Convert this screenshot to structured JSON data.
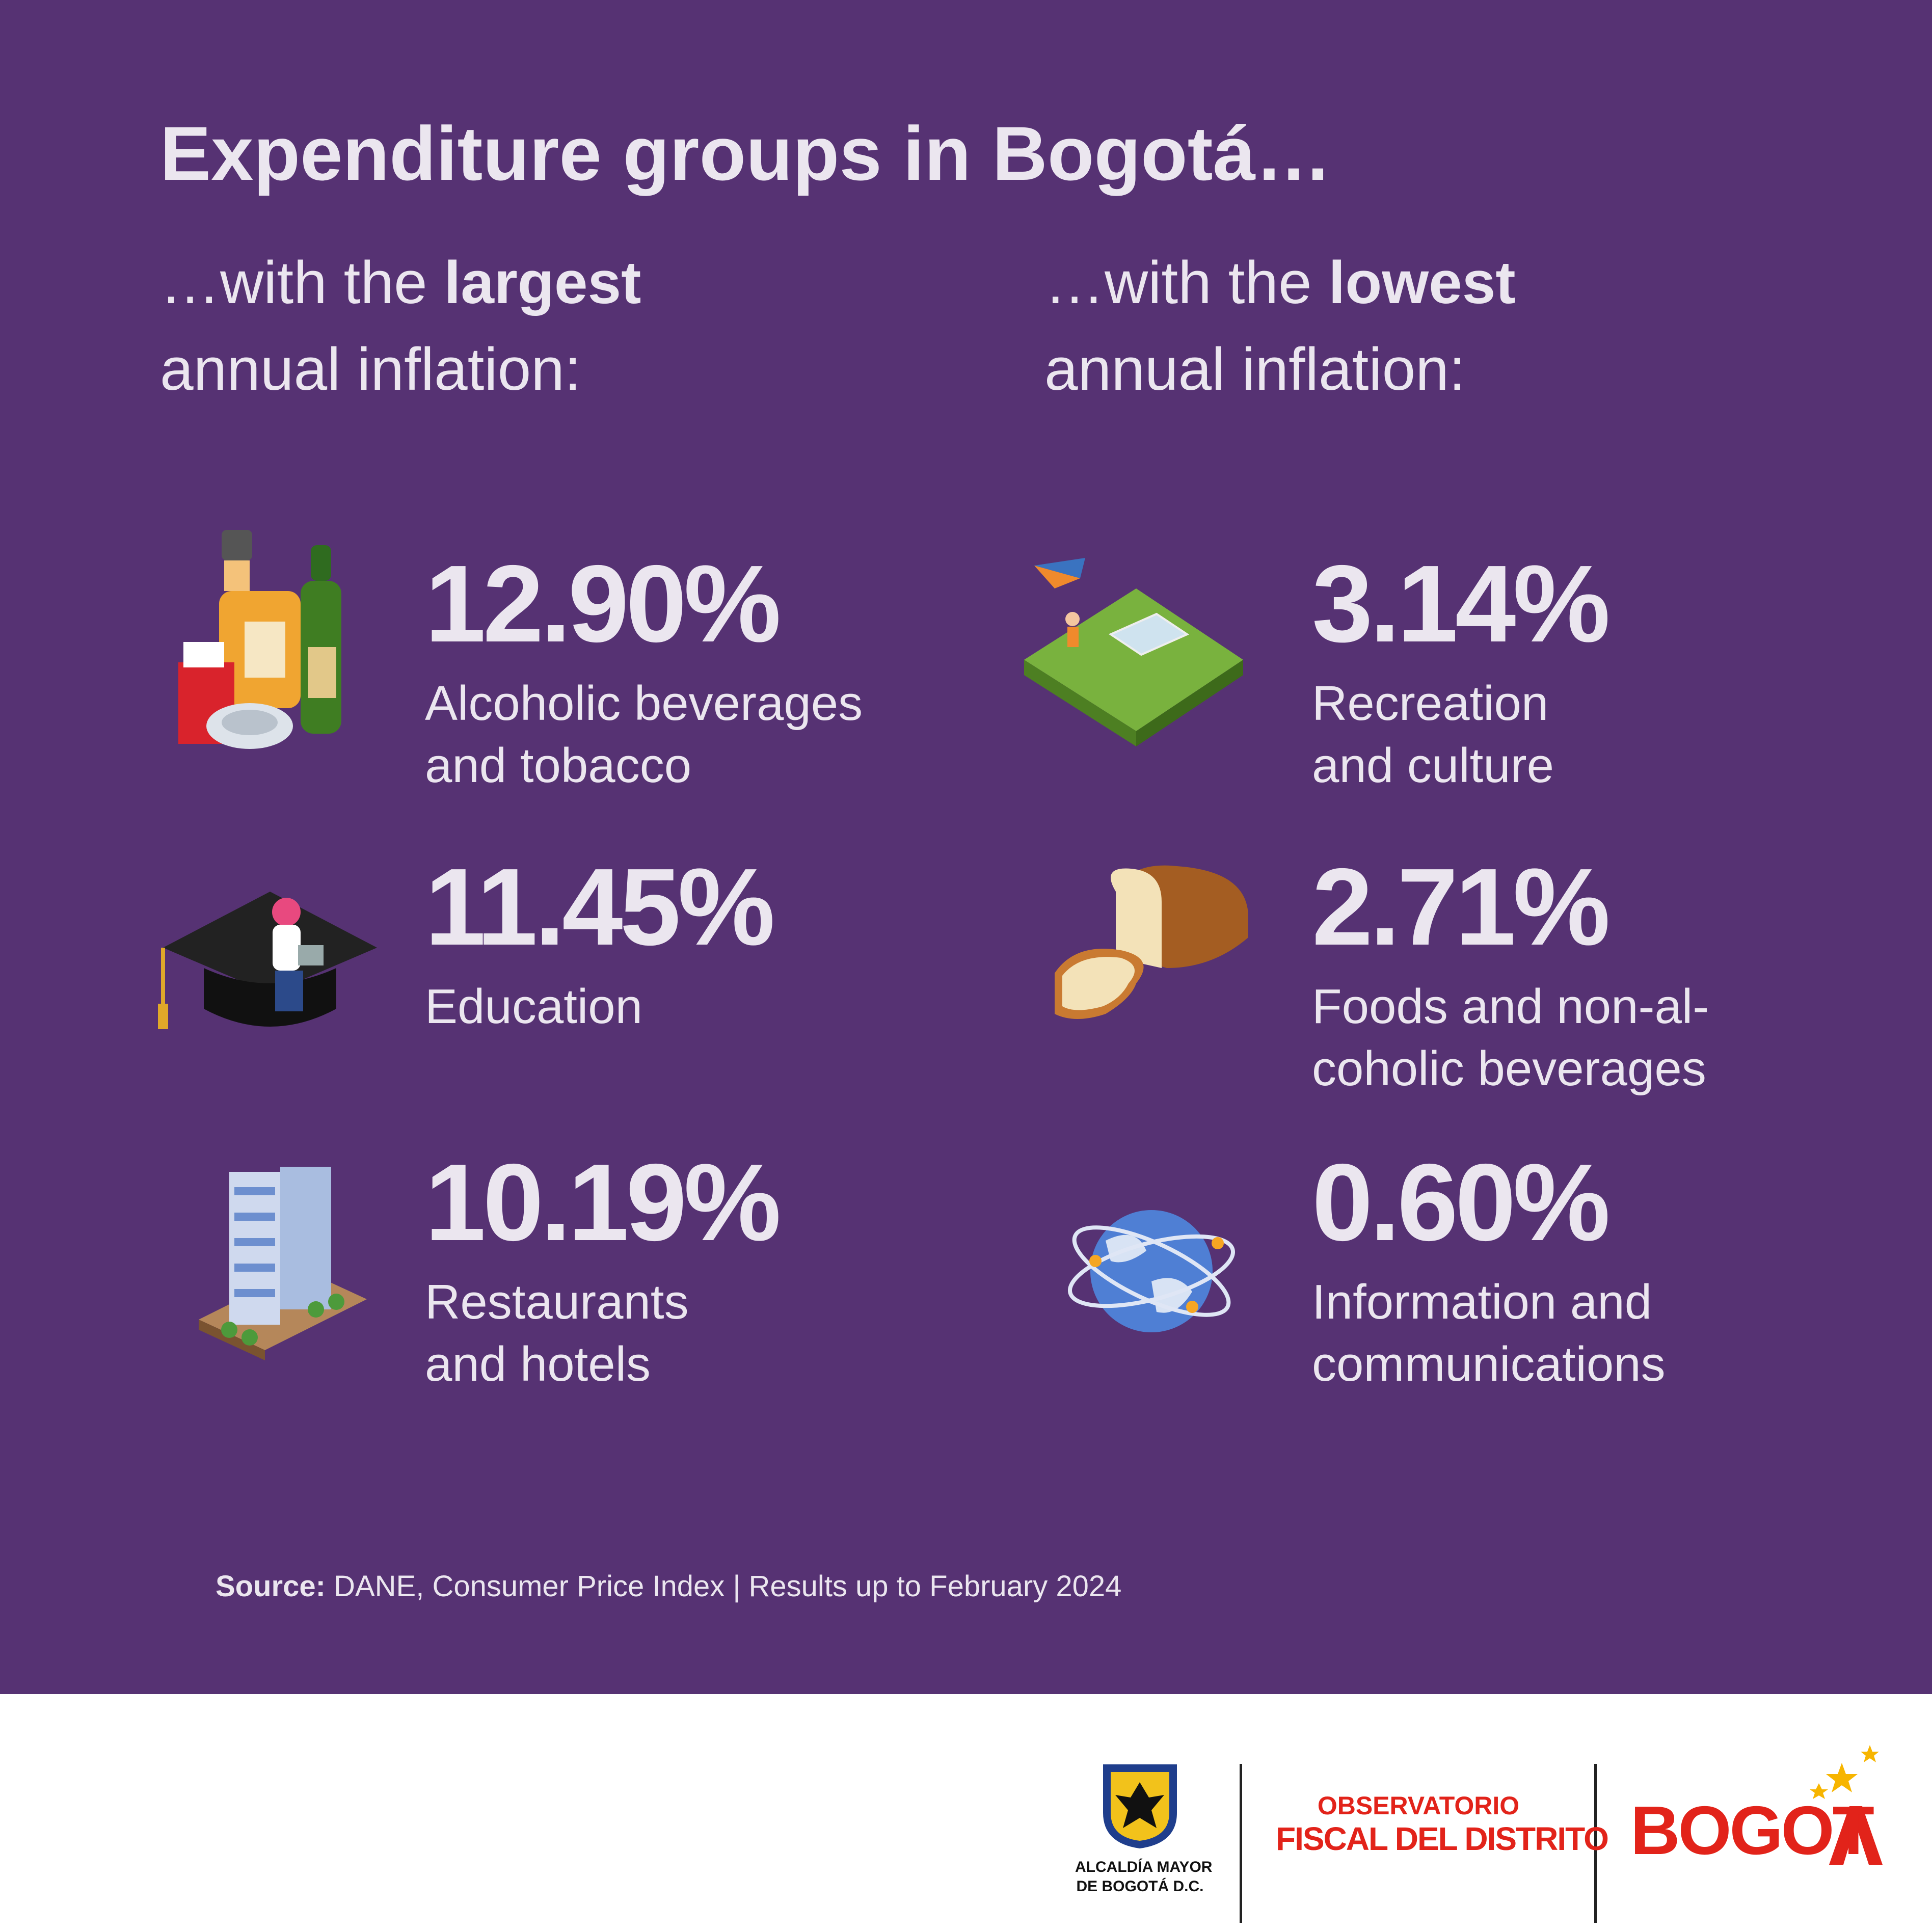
{
  "header": {
    "title": "Expenditure groups in Bogotá…"
  },
  "columns": [
    {
      "subtitle": {
        "prefix": "…with the ",
        "bold": "largest",
        "line2": "annual inflation:"
      },
      "items": [
        {
          "value": "12.90%",
          "label_lines": [
            "Alcoholic beverages",
            "and tobacco"
          ]
        },
        {
          "value": "11.45%",
          "label_lines": [
            "Education"
          ]
        },
        {
          "value": "10.19%",
          "label_lines": [
            "Restaurants",
            "and hotels"
          ]
        }
      ]
    },
    {
      "subtitle": {
        "prefix": "…with the ",
        "bold": "lowest",
        "line2": "annual inflation:"
      },
      "items": [
        {
          "value": "3.14%",
          "label_lines": [
            "Recreation",
            "and culture"
          ]
        },
        {
          "value": "2.71%",
          "label_lines": [
            "Foods and non-al-",
            "coholic beverages"
          ]
        },
        {
          "value": "0.60%",
          "label_lines": [
            "Information and",
            "communications"
          ]
        }
      ]
    }
  ],
  "source": {
    "bold": "Source:",
    "text": " DANE, Consumer Price Index  | Results up to February 2024"
  },
  "footer": {
    "alcaldia_lines": [
      "ALCALDÍA MAYOR",
      "DE BOGOTÁ D.C."
    ],
    "observatorio_lines": [
      "OBSERVATORIO",
      "FISCAL DEL DISTRITO"
    ],
    "bogota": "BOGOT"
  }
}
